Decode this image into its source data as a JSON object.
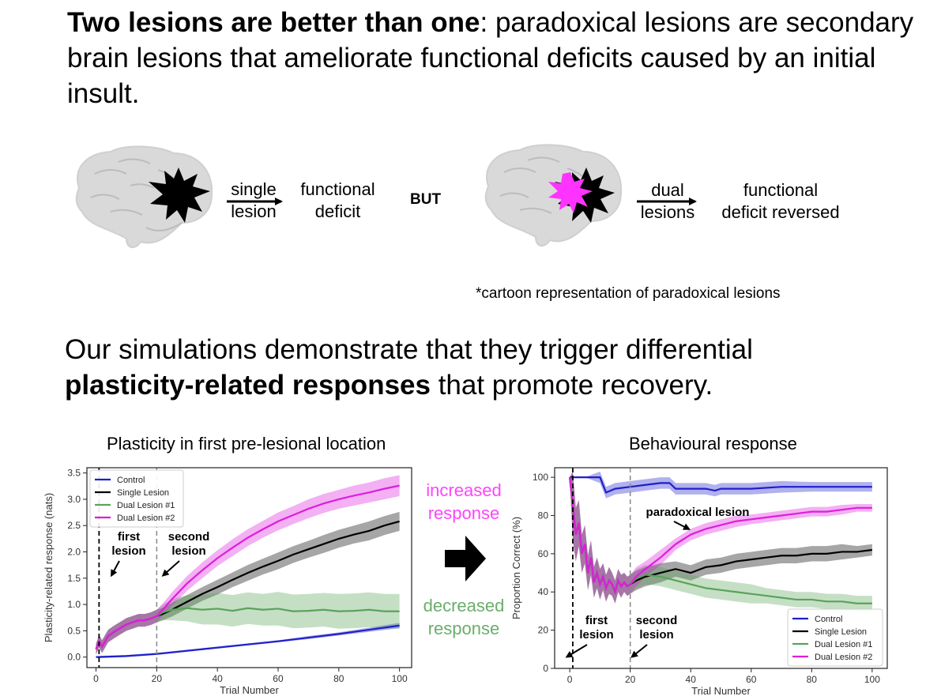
{
  "intro": {
    "bold": "Two lesions are better than one",
    "rest": ": paradoxical lesions are secondary brain lesions that ameliorate functional deficits caused by an initial insult."
  },
  "cartoon": {
    "single_arrow": [
      "single",
      "lesion"
    ],
    "single_result": [
      "functional",
      "deficit"
    ],
    "but": "BUT",
    "dual_arrow": [
      "dual",
      "lesions"
    ],
    "dual_result": [
      "functional",
      "deficit reversed"
    ],
    "note": "*cartoon representation of paradoxical lesions",
    "colors": {
      "brain": "#d9d9d9",
      "lesion1": "#000000",
      "lesion2": "#ff33ff"
    }
  },
  "simulations": {
    "text1": "Our simulations demonstrate that they trigger differential",
    "bold": "plasticity-related responses",
    "text2": " that promote recovery."
  },
  "middle": {
    "increased": [
      "increased",
      "response"
    ],
    "decreased": [
      "decreased",
      "response"
    ],
    "colors": {
      "increased": "#ff44ff",
      "decreased": "#6aae6a",
      "arrow": "#000000"
    }
  },
  "chart_data": [
    {
      "type": "line",
      "title": "Plasticity in first pre-lesional location",
      "xlabel": "Trial Number",
      "ylabel": "Plasticity-related response (nats)",
      "xlim": [
        -3,
        104
      ],
      "ylim": [
        -0.2,
        3.6
      ],
      "xticks": [
        0,
        20,
        40,
        60,
        80,
        100
      ],
      "yticks": [
        0.0,
        0.5,
        1.0,
        1.5,
        2.0,
        2.5,
        3.0,
        3.5
      ],
      "ytick_labels": [
        "0.0",
        "0.5",
        "1.0",
        "1.5",
        "2.0",
        "2.5",
        "3.0",
        "3.5"
      ],
      "legend": "top-left",
      "vlines": [
        1,
        20
      ],
      "annotations": [
        {
          "text": [
            "first",
            "lesion"
          ],
          "arrow_to": [
            3,
            1.55
          ]
        },
        {
          "text": [
            "second",
            "lesion"
          ],
          "arrow_to": [
            21,
            1.55
          ]
        }
      ],
      "series": [
        {
          "name": "Control",
          "color": "#1f1fcc",
          "x": [
            0,
            10,
            20,
            30,
            40,
            50,
            60,
            70,
            80,
            90,
            100
          ],
          "y": [
            0.0,
            0.02,
            0.06,
            0.12,
            0.18,
            0.24,
            0.3,
            0.37,
            0.44,
            0.52,
            0.6
          ],
          "band": [
            0.02,
            0.02,
            0.02,
            0.02,
            0.02,
            0.02,
            0.02,
            0.03,
            0.03,
            0.04,
            0.05
          ]
        },
        {
          "name": "Single Lesion",
          "color": "#000000",
          "x": [
            0,
            1,
            2,
            4,
            6,
            8,
            10,
            12,
            14,
            16,
            18,
            20,
            22,
            25,
            30,
            35,
            40,
            45,
            50,
            55,
            60,
            65,
            70,
            75,
            80,
            85,
            90,
            95,
            100
          ],
          "y": [
            0.15,
            0.3,
            0.2,
            0.4,
            0.48,
            0.55,
            0.62,
            0.66,
            0.7,
            0.7,
            0.73,
            0.78,
            0.82,
            0.9,
            1.05,
            1.2,
            1.33,
            1.47,
            1.6,
            1.72,
            1.83,
            1.95,
            2.05,
            2.15,
            2.25,
            2.33,
            2.4,
            2.5,
            2.58
          ],
          "band": [
            0.1,
            0.12,
            0.12,
            0.12,
            0.12,
            0.12,
            0.12,
            0.12,
            0.12,
            0.12,
            0.12,
            0.12,
            0.12,
            0.13,
            0.13,
            0.13,
            0.14,
            0.14,
            0.15,
            0.15,
            0.16,
            0.16,
            0.16,
            0.17,
            0.17,
            0.17,
            0.18,
            0.18,
            0.18
          ]
        },
        {
          "name": "Dual Lesion #1",
          "color": "#5aa35a",
          "x": [
            0,
            1,
            2,
            4,
            6,
            8,
            10,
            12,
            14,
            16,
            18,
            20,
            22,
            25,
            30,
            35,
            40,
            45,
            50,
            55,
            60,
            65,
            70,
            75,
            80,
            85,
            90,
            95,
            100
          ],
          "y": [
            0.15,
            0.3,
            0.2,
            0.4,
            0.48,
            0.55,
            0.62,
            0.66,
            0.7,
            0.7,
            0.73,
            0.78,
            0.85,
            0.9,
            0.93,
            0.9,
            0.92,
            0.88,
            0.93,
            0.9,
            0.92,
            0.87,
            0.88,
            0.9,
            0.87,
            0.88,
            0.9,
            0.87,
            0.87
          ],
          "band": [
            0.1,
            0.12,
            0.12,
            0.12,
            0.12,
            0.12,
            0.12,
            0.12,
            0.12,
            0.12,
            0.12,
            0.12,
            0.15,
            0.2,
            0.25,
            0.28,
            0.3,
            0.3,
            0.3,
            0.3,
            0.32,
            0.32,
            0.32,
            0.32,
            0.33,
            0.33,
            0.33,
            0.33,
            0.33
          ]
        },
        {
          "name": "Dual Lesion #2",
          "color": "#dd1edd",
          "x": [
            0,
            1,
            2,
            4,
            6,
            8,
            10,
            12,
            14,
            16,
            18,
            20,
            22,
            25,
            30,
            35,
            40,
            45,
            50,
            55,
            60,
            65,
            70,
            75,
            80,
            85,
            90,
            95,
            100
          ],
          "y": [
            0.15,
            0.3,
            0.2,
            0.4,
            0.48,
            0.55,
            0.62,
            0.66,
            0.7,
            0.7,
            0.73,
            0.78,
            0.9,
            1.1,
            1.4,
            1.65,
            1.88,
            2.08,
            2.27,
            2.43,
            2.58,
            2.7,
            2.82,
            2.92,
            3.0,
            3.07,
            3.13,
            3.2,
            3.26
          ],
          "band": [
            0.1,
            0.12,
            0.12,
            0.12,
            0.12,
            0.12,
            0.12,
            0.12,
            0.12,
            0.12,
            0.12,
            0.12,
            0.12,
            0.13,
            0.14,
            0.15,
            0.15,
            0.16,
            0.16,
            0.16,
            0.17,
            0.17,
            0.18,
            0.18,
            0.18,
            0.19,
            0.19,
            0.2,
            0.2
          ]
        }
      ]
    },
    {
      "type": "line",
      "title": "Behavioural response",
      "xlabel": "Trial Number",
      "ylabel": "Proportion Correct (%)",
      "xlim": [
        -5,
        105
      ],
      "ylim": [
        0,
        105
      ],
      "xticks": [
        0,
        20,
        40,
        60,
        80,
        100
      ],
      "yticks": [
        0,
        20,
        40,
        60,
        80,
        100
      ],
      "ytick_labels": [
        "0",
        "20",
        "40",
        "60",
        "80",
        "100"
      ],
      "legend": "bottom-right",
      "vlines": [
        1,
        20
      ],
      "annotations": [
        {
          "text": [
            "paradoxical lesion"
          ],
          "arrow_to": [
            40,
            72
          ]
        },
        {
          "text": [
            "first",
            "lesion"
          ],
          "arrow_to": [
            -1,
            6
          ]
        },
        {
          "text": [
            "second",
            "lesion"
          ],
          "arrow_to": [
            20,
            6
          ]
        }
      ],
      "series": [
        {
          "name": "Control",
          "color": "#1f1fcc",
          "x": [
            0,
            1,
            5,
            10,
            12,
            15,
            20,
            25,
            30,
            33,
            35,
            40,
            45,
            48,
            50,
            55,
            60,
            70,
            80,
            90,
            100
          ],
          "y": [
            100,
            100,
            100,
            100,
            92,
            94,
            95,
            96,
            97,
            97,
            94,
            94,
            94,
            93,
            94,
            94,
            94,
            95,
            95,
            95,
            95
          ],
          "band": [
            0,
            0,
            0,
            3,
            3,
            3,
            3,
            3,
            3,
            3,
            3,
            3,
            3,
            3,
            3,
            3,
            3,
            3,
            2.5,
            2.5,
            2.5
          ]
        },
        {
          "name": "Single Lesion",
          "color": "#000000",
          "x": [
            0,
            1,
            2,
            3,
            4,
            5,
            6,
            7,
            8,
            9,
            10,
            11,
            12,
            13,
            14,
            15,
            16,
            17,
            18,
            19,
            20,
            22,
            25,
            30,
            35,
            40,
            45,
            50,
            55,
            60,
            65,
            70,
            75,
            80,
            85,
            90,
            95,
            100
          ],
          "y": [
            100,
            85,
            70,
            76,
            60,
            65,
            50,
            58,
            45,
            50,
            44,
            48,
            42,
            46,
            44,
            40,
            46,
            43,
            45,
            43,
            44,
            46,
            48,
            50,
            52,
            50,
            53,
            54,
            56,
            57,
            58,
            59,
            59,
            60,
            60,
            61,
            61,
            62
          ],
          "band": [
            0,
            18,
            14,
            12,
            10,
            10,
            9,
            9,
            8,
            8,
            8,
            7,
            7,
            7,
            6,
            6,
            6,
            6,
            5,
            5,
            5,
            5,
            5,
            5,
            4,
            4,
            4,
            4,
            4,
            4,
            4,
            4,
            4,
            4,
            4,
            4,
            3,
            3
          ]
        },
        {
          "name": "Dual Lesion #1",
          "color": "#5aa35a",
          "x": [
            0,
            1,
            2,
            3,
            4,
            5,
            6,
            7,
            8,
            9,
            10,
            11,
            12,
            13,
            14,
            15,
            16,
            17,
            18,
            19,
            20,
            22,
            25,
            30,
            35,
            40,
            45,
            50,
            55,
            60,
            65,
            70,
            75,
            80,
            85,
            90,
            95,
            100
          ],
          "y": [
            100,
            85,
            70,
            76,
            60,
            65,
            50,
            58,
            45,
            50,
            44,
            48,
            42,
            46,
            44,
            40,
            46,
            43,
            45,
            43,
            44,
            47,
            49,
            48,
            46,
            44,
            42,
            41,
            40,
            39,
            38,
            37,
            36,
            36,
            35,
            35,
            34,
            34
          ],
          "band": [
            0,
            18,
            14,
            12,
            10,
            10,
            9,
            9,
            8,
            8,
            8,
            7,
            7,
            7,
            6,
            6,
            6,
            6,
            5,
            5,
            5,
            5,
            5,
            5,
            5,
            5,
            5,
            5,
            5,
            5,
            4,
            4,
            4,
            4,
            4,
            4,
            4,
            4
          ]
        },
        {
          "name": "Dual Lesion #2",
          "color": "#dd1edd",
          "x": [
            0,
            1,
            2,
            3,
            4,
            5,
            6,
            7,
            8,
            9,
            10,
            11,
            12,
            13,
            14,
            15,
            16,
            17,
            18,
            19,
            20,
            22,
            25,
            30,
            35,
            40,
            45,
            50,
            55,
            60,
            65,
            70,
            75,
            80,
            85,
            90,
            95,
            100
          ],
          "y": [
            100,
            85,
            70,
            76,
            60,
            65,
            50,
            58,
            45,
            50,
            44,
            48,
            42,
            46,
            44,
            40,
            46,
            43,
            45,
            43,
            44,
            48,
            52,
            58,
            65,
            70,
            73,
            75,
            77,
            78,
            79,
            80,
            81,
            82,
            82,
            83,
            84,
            84
          ],
          "band": [
            0,
            18,
            14,
            12,
            10,
            10,
            9,
            9,
            8,
            8,
            8,
            7,
            7,
            7,
            6,
            6,
            6,
            6,
            5,
            5,
            5,
            5,
            4,
            4,
            3,
            3,
            3,
            3,
            3,
            2.5,
            2.5,
            2.5,
            2.5,
            2.5,
            2.5,
            2.5,
            2,
            2
          ]
        }
      ]
    }
  ]
}
